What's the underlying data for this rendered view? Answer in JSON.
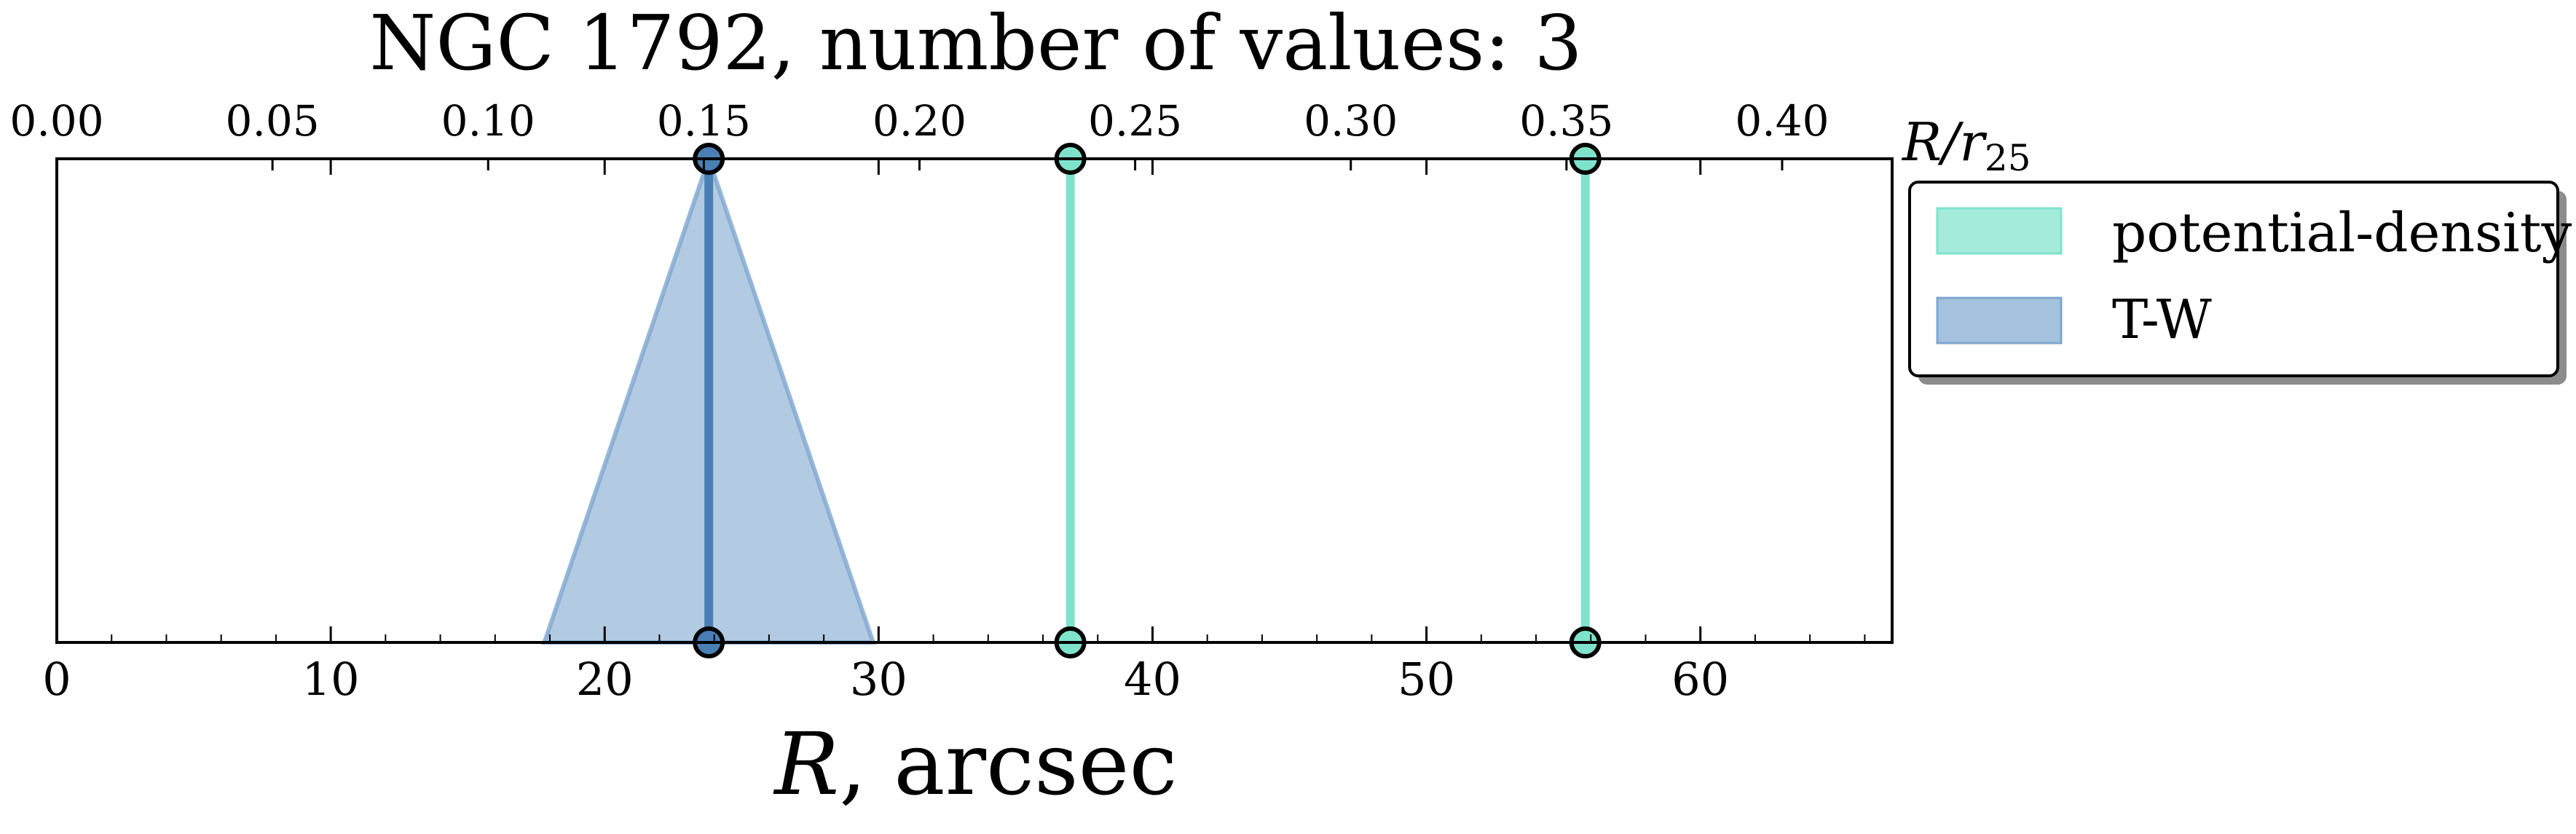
{
  "chart_data": {
    "type": "line",
    "title": "NGC 1792, number of values: 3",
    "xlabel_italic": "R",
    "xlabel_rest": ", arcsec",
    "top_xlabel_main": "R/r",
    "top_xlabel_sub": "25",
    "xlim": [
      0,
      67
    ],
    "x_ticks": [
      0,
      10,
      20,
      30,
      40,
      50,
      60
    ],
    "x_tick_labels": [
      "0",
      "10",
      "20",
      "30",
      "40",
      "50",
      "60"
    ],
    "top_xlim": [
      0.0,
      0.4255
    ],
    "top_ticks": [
      0.0,
      0.05,
      0.1,
      0.15,
      0.2,
      0.25,
      0.3,
      0.35,
      0.4
    ],
    "top_tick_labels": [
      "0.00",
      "0.05",
      "0.10",
      "0.15",
      "0.20",
      "0.25",
      "0.30",
      "0.35",
      "0.40"
    ],
    "grid": false,
    "legend_position": "top-right, outside plot",
    "series": [
      {
        "name": "potential-density",
        "color": "#7fe3cc",
        "values": [
          {
            "x": 37.0,
            "xerr": 0
          },
          {
            "x": 55.8,
            "xerr": 0
          }
        ]
      },
      {
        "name": "T-W",
        "color": "#4a7fb5",
        "fill_color": "#7ea6cf",
        "values": [
          {
            "x": 23.8,
            "xerr": 6.0
          }
        ]
      }
    ]
  }
}
